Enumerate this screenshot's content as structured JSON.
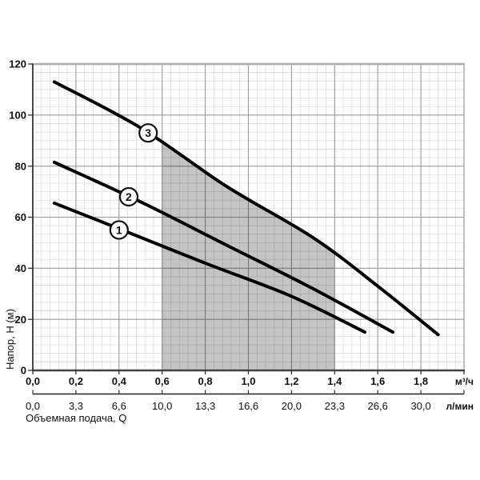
{
  "chart_data": {
    "type": "line",
    "title": "",
    "xlabel": "Объемная подача, Q",
    "ylabel": "Напор, Н (м)",
    "x_unit_primary": "м³/ч",
    "x_unit_secondary": "л/мин",
    "xlim": [
      0,
      2.0
    ],
    "ylim": [
      0,
      120
    ],
    "x_major_step": 0.2,
    "y_major_step": 20,
    "x_minor_per_major": 5,
    "y_minor_per_major": 6,
    "grid": "on",
    "x_ticks_primary": [
      "0,0",
      "0,2",
      "0,4",
      "0,6",
      "0,8",
      "1,0",
      "1,2",
      "1,4",
      "1,6",
      "1,8"
    ],
    "x_ticks_secondary": [
      "0,0",
      "3,3",
      "6,6",
      "10,0",
      "13,3",
      "16,6",
      "20,0",
      "23,3",
      "26,6",
      "30,0"
    ],
    "y_ticks": [
      "0",
      "20",
      "40",
      "60",
      "80",
      "100",
      "120"
    ],
    "series": [
      {
        "name": "1",
        "points": [
          [
            0.1,
            65.5
          ],
          [
            0.4,
            55.5
          ],
          [
            0.8,
            42
          ],
          [
            1.2,
            29
          ],
          [
            1.54,
            15
          ]
        ],
        "label_at": [
          0.4,
          55
        ]
      },
      {
        "name": "2",
        "points": [
          [
            0.1,
            81.5
          ],
          [
            0.5,
            66
          ],
          [
            0.9,
            49
          ],
          [
            1.3,
            32
          ],
          [
            1.67,
            15
          ]
        ],
        "label_at": [
          0.445,
          68
        ]
      },
      {
        "name": "3",
        "points": [
          [
            0.1,
            113
          ],
          [
            0.5,
            95
          ],
          [
            0.9,
            72
          ],
          [
            1.3,
            52
          ],
          [
            1.6,
            33
          ],
          [
            1.88,
            14
          ]
        ],
        "label_at": [
          0.535,
          93
        ]
      }
    ],
    "shaded_region": {
      "x_from": 0.6,
      "x_to": 1.4,
      "bounded_above_by_series": "3",
      "fill": "rgba(0,0,0,0.23)"
    },
    "colors": {
      "curve": "#000000",
      "grid_minor": "#d9d9d9",
      "grid_major": "#9a9a9a",
      "frame_light": "#ababab",
      "frame_dark": "#333333",
      "axis_dark": "#444444",
      "marker_fill": "#ffffff",
      "marker_stroke": "#111111"
    }
  }
}
